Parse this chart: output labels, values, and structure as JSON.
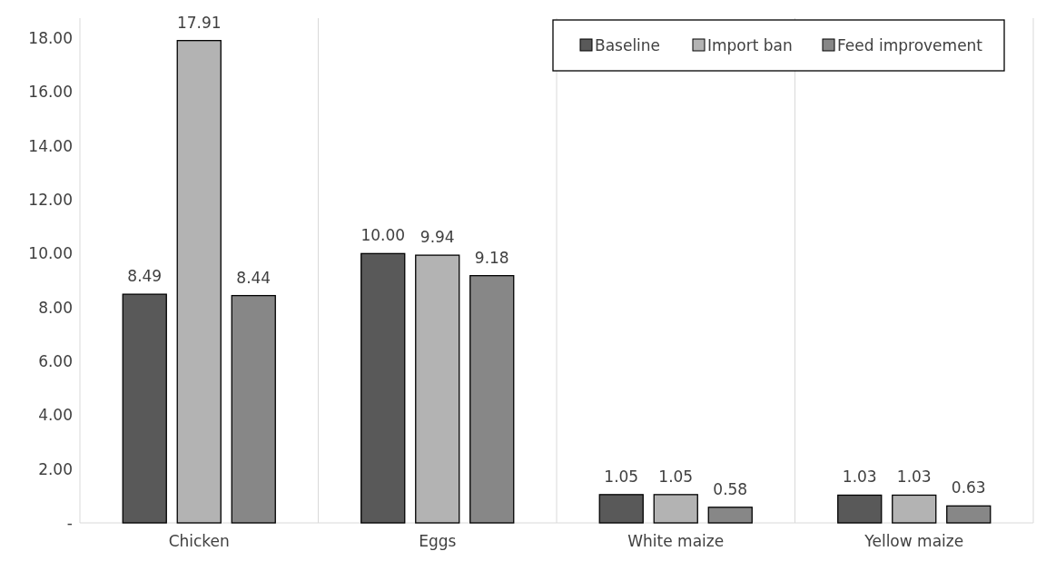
{
  "chart_data": {
    "type": "bar",
    "categories": [
      "Chicken",
      "Eggs",
      "White maize",
      "Yellow maize"
    ],
    "series": [
      {
        "name": "Baseline",
        "color": "#595959",
        "values": [
          8.49,
          10.0,
          1.05,
          1.03
        ],
        "value_labels": [
          "8.49",
          "10.00",
          "1.05",
          "1.03"
        ]
      },
      {
        "name": "Import ban",
        "color": "#b3b3b3",
        "values": [
          17.91,
          9.94,
          1.05,
          1.03
        ],
        "value_labels": [
          "17.91",
          "9.94",
          "1.05",
          "1.03"
        ]
      },
      {
        "name": "Feed improvement",
        "color": "#878787",
        "values": [
          8.44,
          9.18,
          0.58,
          0.63
        ],
        "value_labels": [
          "8.44",
          "9.18",
          "0.58",
          "0.63"
        ]
      }
    ],
    "ylim": [
      0,
      18
    ],
    "yticks": [
      {
        "value": 0,
        "label": "-"
      },
      {
        "value": 2,
        "label": "2.00"
      },
      {
        "value": 4,
        "label": "4.00"
      },
      {
        "value": 6,
        "label": "6.00"
      },
      {
        "value": 8,
        "label": "8.00"
      },
      {
        "value": 10,
        "label": "10.00"
      },
      {
        "value": 12,
        "label": "12.00"
      },
      {
        "value": 14,
        "label": "14.00"
      },
      {
        "value": 16,
        "label": "16.00"
      },
      {
        "value": 18,
        "label": "18.00"
      }
    ],
    "grid": "x",
    "legend": "top right"
  }
}
